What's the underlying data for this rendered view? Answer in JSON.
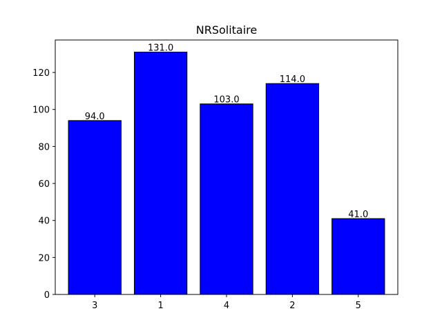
{
  "chart_data": {
    "type": "bar",
    "title": "NRSolitaire",
    "xlabel": "",
    "ylabel": "",
    "categories": [
      "3",
      "1",
      "4",
      "2",
      "5"
    ],
    "values": [
      94.0,
      131.0,
      103.0,
      114.0,
      41.0
    ],
    "data_labels": [
      "94.0",
      "131.0",
      "103.0",
      "114.0",
      "41.0"
    ],
    "ylim": [
      0,
      137.55
    ],
    "yticks": [
      0,
      20,
      40,
      60,
      80,
      100,
      120
    ],
    "bar_color": "#0000ff",
    "edge_color": "#000000",
    "grid": false
  }
}
